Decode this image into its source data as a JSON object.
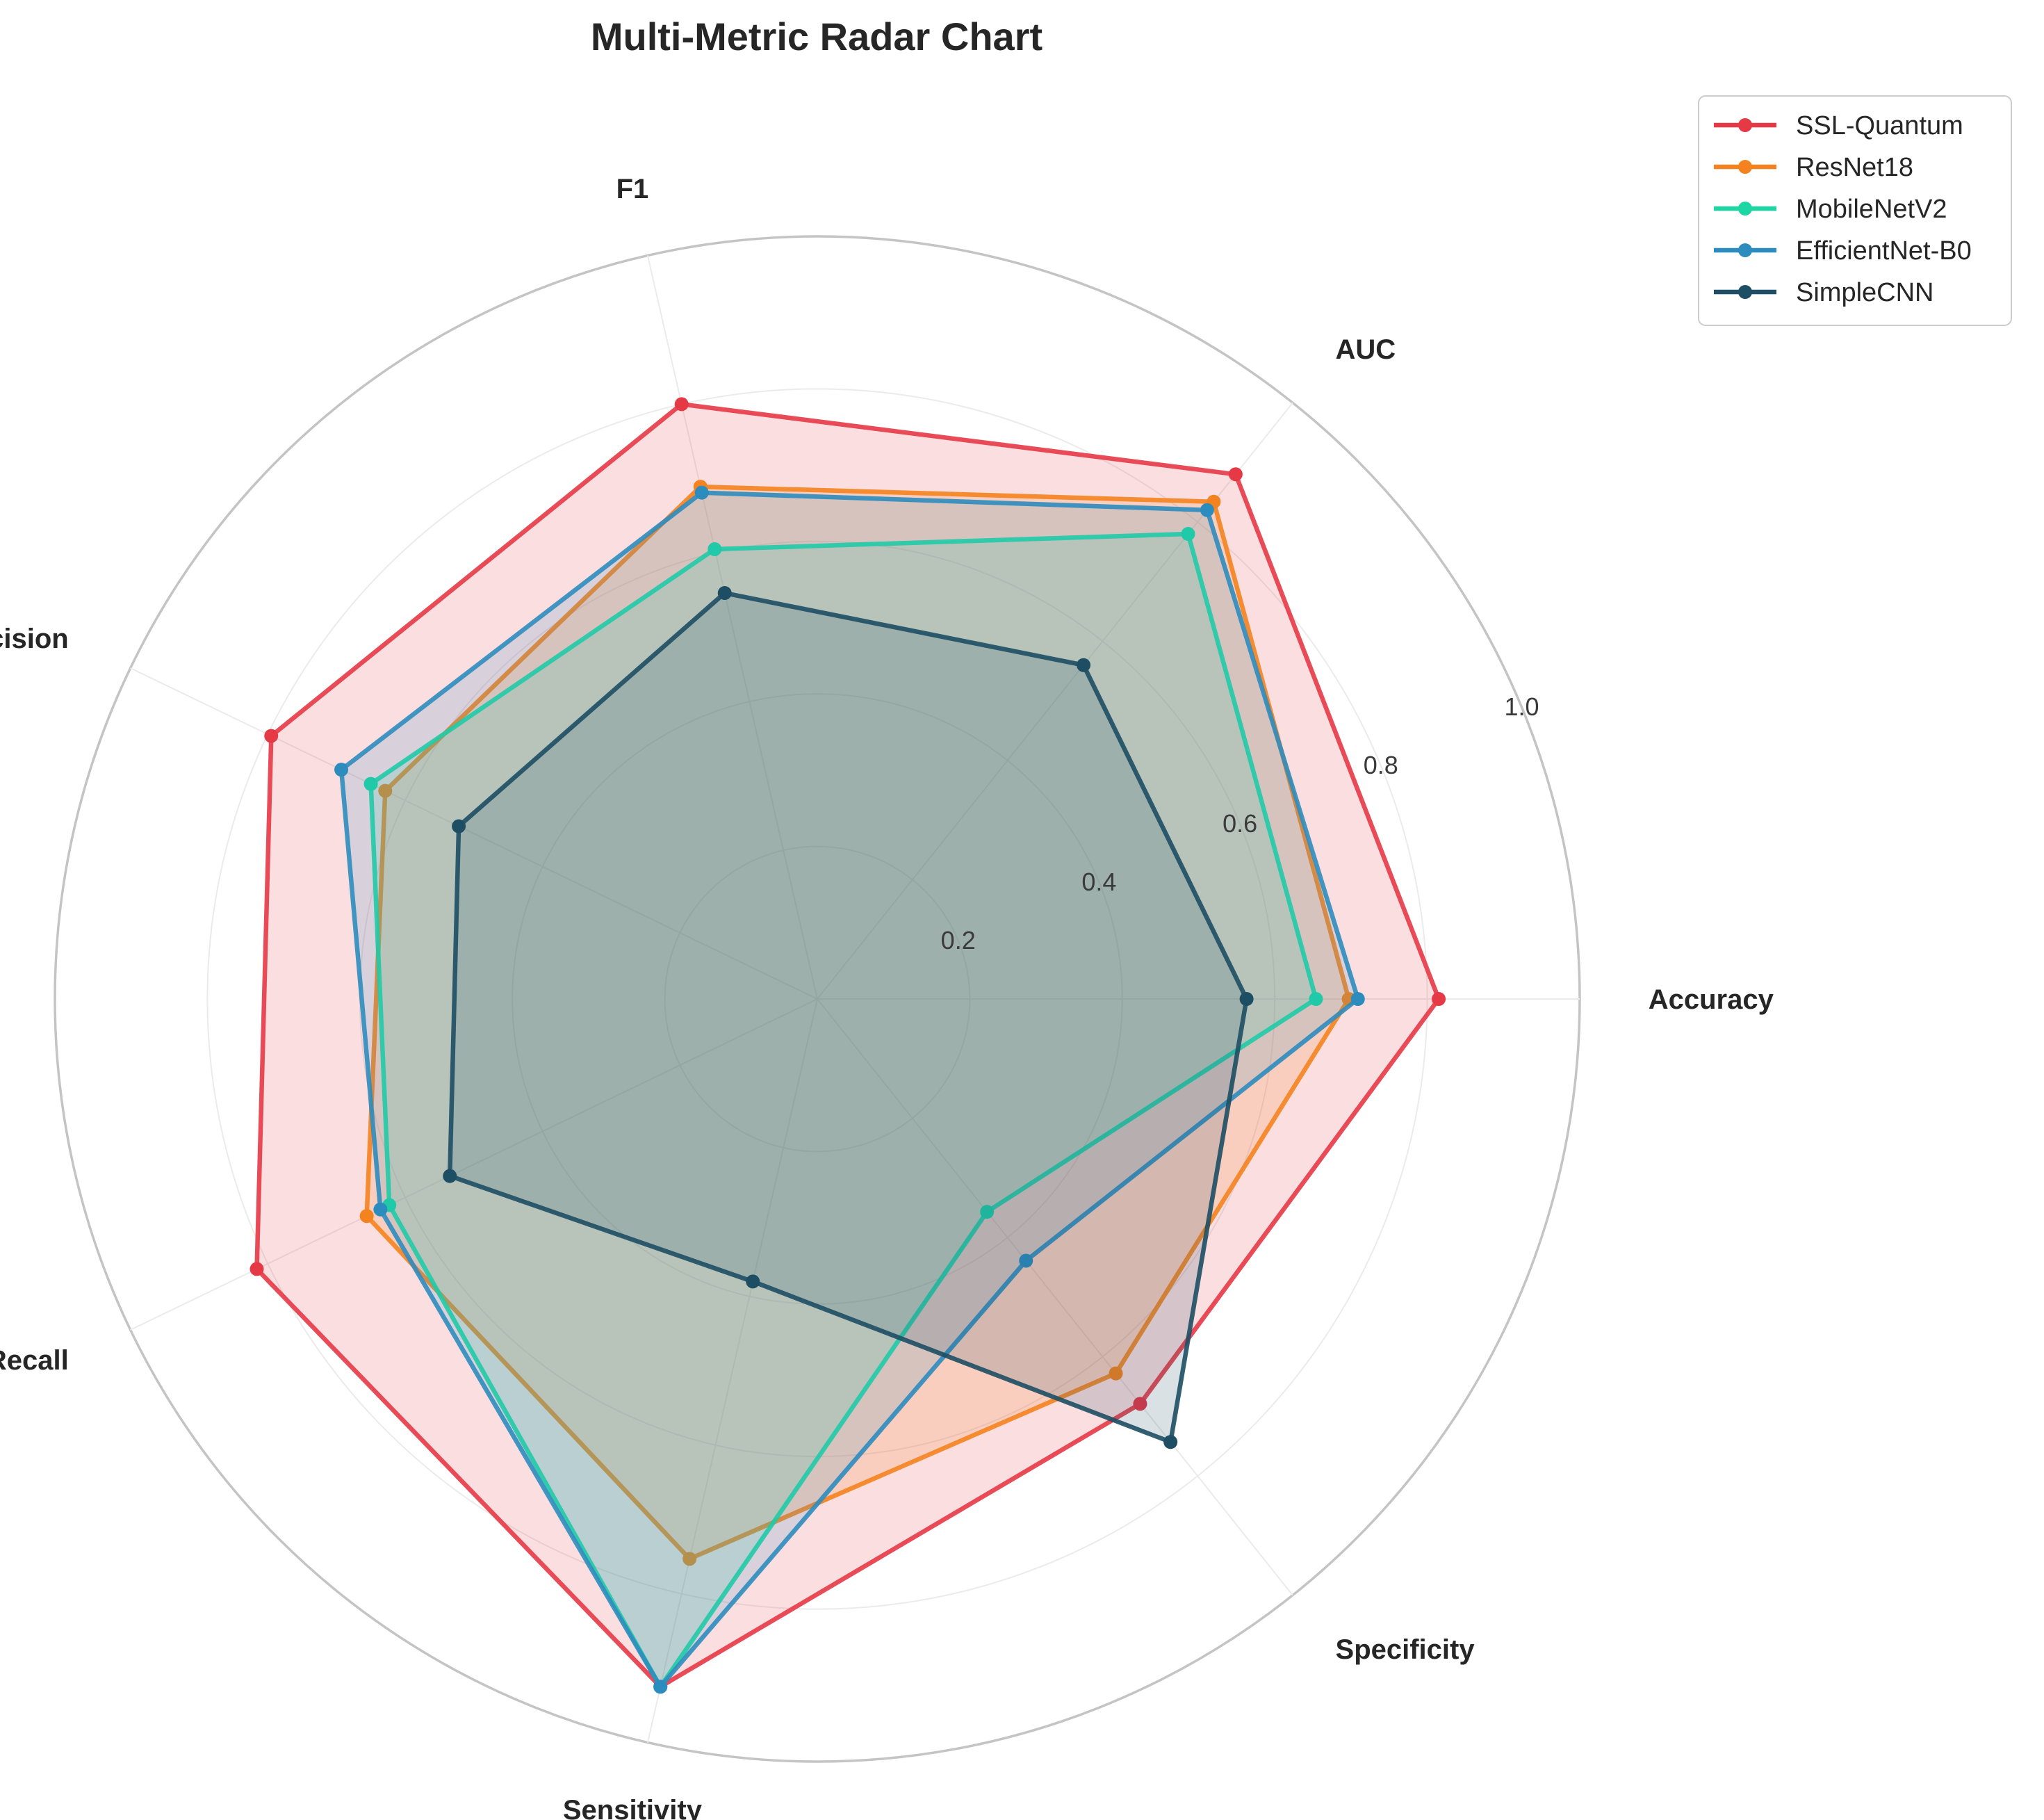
{
  "chart_data": {
    "type": "radar",
    "title": "Multi-Metric Radar Chart",
    "axes": [
      "Accuracy",
      "AUC",
      "F1",
      "Precision",
      "Recall",
      "Sensitivity",
      "Specificity"
    ],
    "radial_range": [
      0,
      1.0
    ],
    "radial_ticks": [
      0.2,
      0.4,
      0.6,
      0.8,
      1.0
    ],
    "radial_tick_labels": [
      "0.2",
      "0.4",
      "0.6",
      "0.8",
      "1.0"
    ],
    "grid": true,
    "legend_position": "upper-right outside",
    "series": [
      {
        "name": "SSL-Quantum",
        "color": "#E63946",
        "values": [
          0.815,
          0.88,
          0.8,
          0.795,
          0.816,
          0.925,
          0.679
        ]
      },
      {
        "name": "ResNet18",
        "color": "#F4831F",
        "values": [
          0.697,
          0.834,
          0.689,
          0.629,
          0.656,
          0.753,
          0.628
        ]
      },
      {
        "name": "MobileNetV2",
        "color": "#1ED6A4",
        "values": [
          0.654,
          0.78,
          0.605,
          0.65,
          0.623,
          0.925,
          0.357
        ]
      },
      {
        "name": "EfficientNet-B0",
        "color": "#2D8CBE",
        "values": [
          0.709,
          0.82,
          0.681,
          0.693,
          0.636,
          0.925,
          0.439
        ]
      },
      {
        "name": "SimpleCNN",
        "color": "#1D4E63",
        "values": [
          0.563,
          0.56,
          0.546,
          0.522,
          0.535,
          0.38,
          0.743
        ]
      }
    ]
  }
}
